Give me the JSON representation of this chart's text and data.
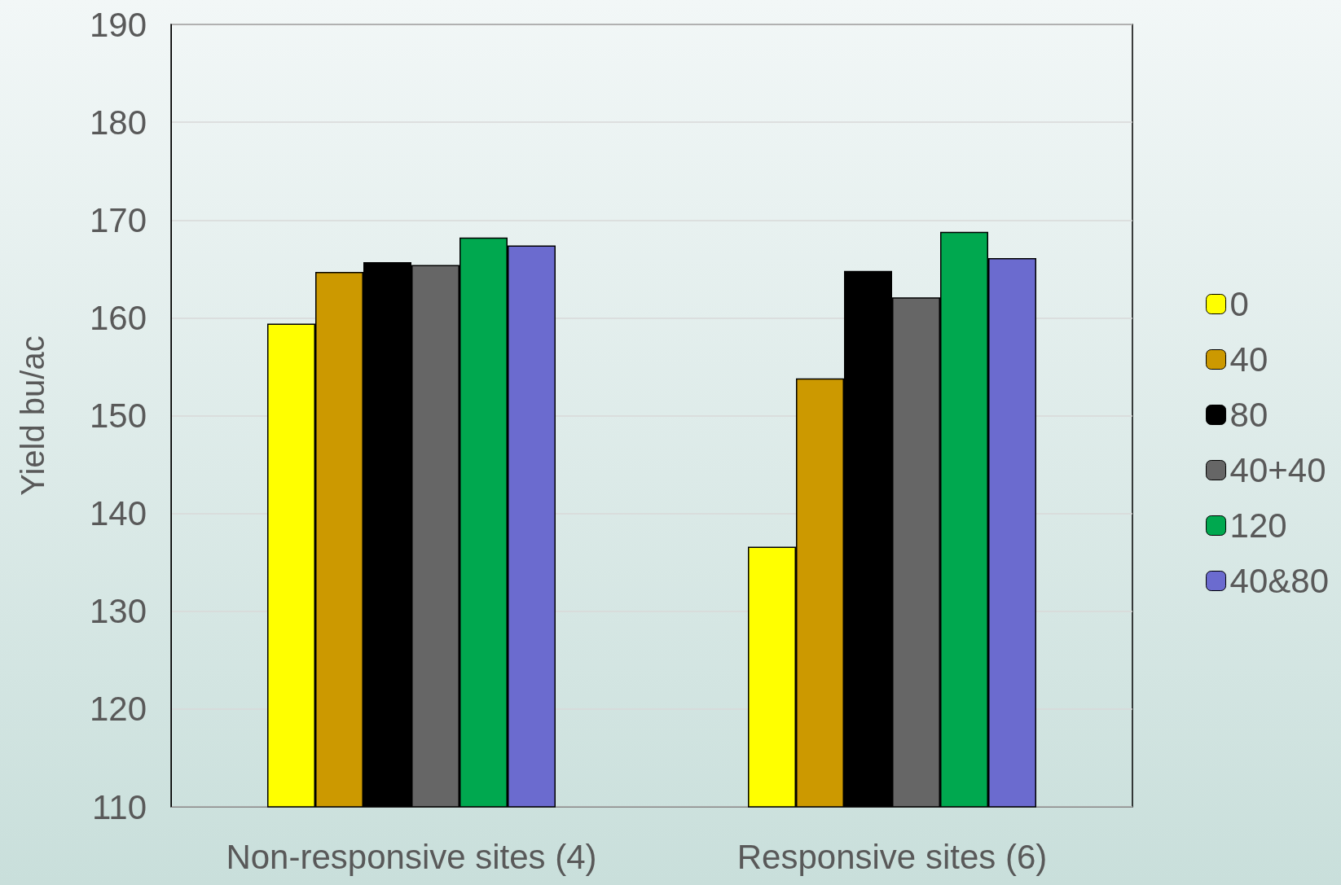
{
  "chart_data": {
    "type": "bar",
    "ylabel": "Yield bu/ac",
    "categories": [
      "Non-responsive sites (4)",
      "Responsive sites (6)"
    ],
    "series": [
      {
        "name": "0",
        "color": "#ffff00",
        "values": [
          159.4,
          136.6
        ]
      },
      {
        "name": "40",
        "color": "#cc9900",
        "values": [
          164.7,
          153.8
        ]
      },
      {
        "name": "80",
        "color": "#000000",
        "values": [
          165.7,
          164.8
        ]
      },
      {
        "name": "40+40",
        "color": "#666666",
        "values": [
          165.4,
          162.1
        ]
      },
      {
        "name": "120",
        "color": "#00a84f",
        "values": [
          168.2,
          168.8
        ]
      },
      {
        "name": "40&80",
        "color": "#6b6bcf",
        "values": [
          167.4,
          166.1
        ]
      }
    ],
    "ylim": [
      110,
      190
    ],
    "yticks": [
      110,
      120,
      130,
      140,
      150,
      160,
      170,
      180,
      190
    ],
    "grid": "y",
    "legend": "right"
  }
}
